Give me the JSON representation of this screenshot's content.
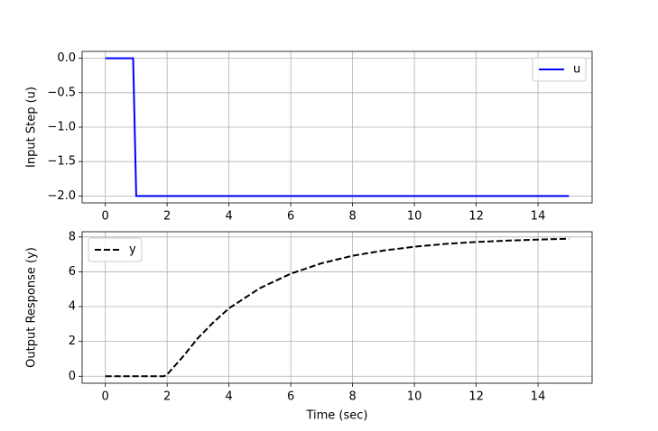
{
  "chart_data": [
    {
      "type": "line",
      "ylabel": "Input Step (u)",
      "x": [
        0,
        0.9,
        1.0,
        15
      ],
      "series": [
        {
          "name": "u",
          "color": "#0000ff",
          "linestyle": "solid",
          "values": [
            0,
            0,
            -2,
            -2
          ]
        }
      ],
      "xlim": [
        -0.75,
        15.75
      ],
      "ylim": [
        -2.1,
        0.1
      ],
      "xticks": [
        0,
        2,
        4,
        6,
        8,
        10,
        12,
        14
      ],
      "yticks": [
        {
          "value": 0,
          "label": "0.0"
        },
        {
          "value": -0.5,
          "label": "−0.5"
        },
        {
          "value": -1,
          "label": "−1.0"
        },
        {
          "value": -1.5,
          "label": "−1.5"
        },
        {
          "value": -2,
          "label": "−2.0"
        }
      ],
      "grid": true,
      "legend": "upper right"
    },
    {
      "type": "line",
      "ylabel": "Output Response (y)",
      "xlabel": "Time (sec)",
      "x": [
        0,
        1,
        1.9,
        2,
        2.5,
        3,
        3.5,
        4,
        5,
        6,
        7,
        8,
        9,
        10,
        11,
        12,
        13,
        14,
        15
      ],
      "series": [
        {
          "name": "y",
          "color": "#000000",
          "linestyle": "dashed",
          "values": [
            0,
            0,
            0,
            0.1,
            1.1,
            2.2,
            3.1,
            3.9,
            5.06,
            5.89,
            6.49,
            6.92,
            7.22,
            7.44,
            7.6,
            7.71,
            7.79,
            7.85,
            7.9
          ]
        }
      ],
      "xlim": [
        -0.75,
        15.75
      ],
      "ylim": [
        -0.4,
        8.3
      ],
      "xticks": [
        0,
        2,
        4,
        6,
        8,
        10,
        12,
        14
      ],
      "yticks": [
        0,
        2,
        4,
        6,
        8
      ],
      "grid": true,
      "legend": "upper left"
    }
  ]
}
